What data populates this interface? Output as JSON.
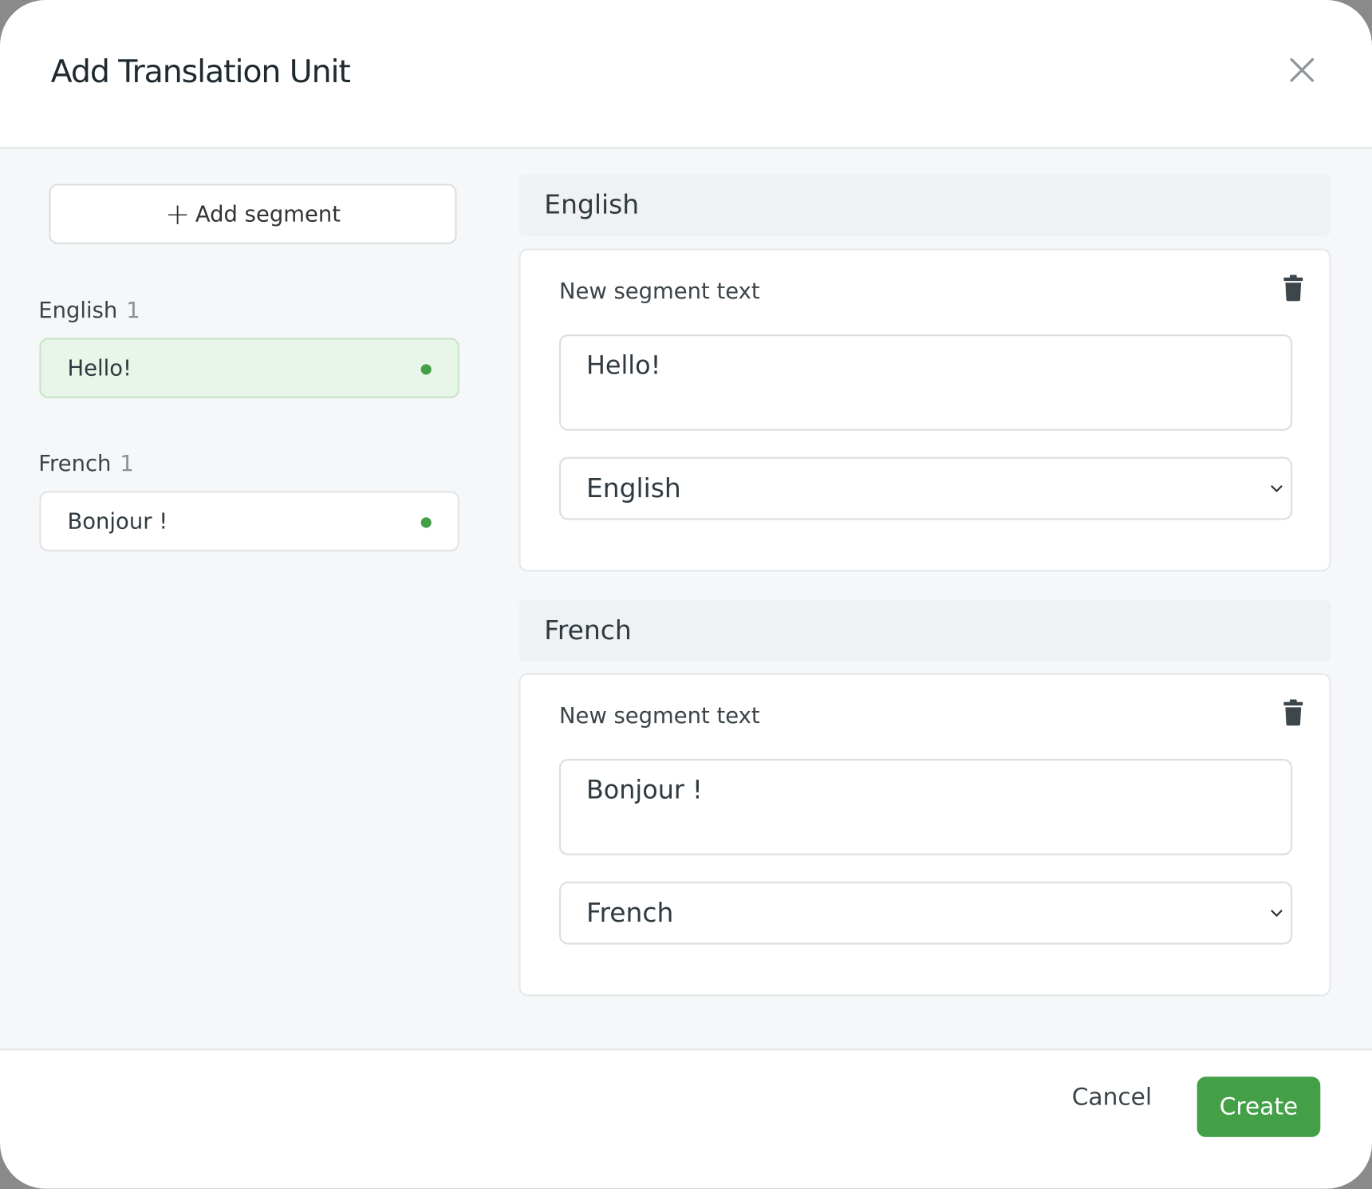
{
  "dialog": {
    "title": "Add Translation Unit",
    "close_icon": "close-icon"
  },
  "sidebar": {
    "add_segment_label": "Add segment",
    "groups": [
      {
        "label": "English",
        "count": "1",
        "items": [
          {
            "text": "Hello!",
            "active": true
          }
        ]
      },
      {
        "label": "French",
        "count": "1",
        "items": [
          {
            "text": "Bonjour !",
            "active": false
          }
        ]
      }
    ]
  },
  "sections": [
    {
      "heading": "English",
      "field_label": "New segment text",
      "text": "Hello!",
      "language": "English"
    },
    {
      "heading": "French",
      "field_label": "New segment text",
      "text": "Bonjour !",
      "language": "French"
    }
  ],
  "footer": {
    "cancel_label": "Cancel",
    "create_label": "Create"
  },
  "colors": {
    "accent": "#43a047",
    "active_bg": "#e8f5e9"
  }
}
